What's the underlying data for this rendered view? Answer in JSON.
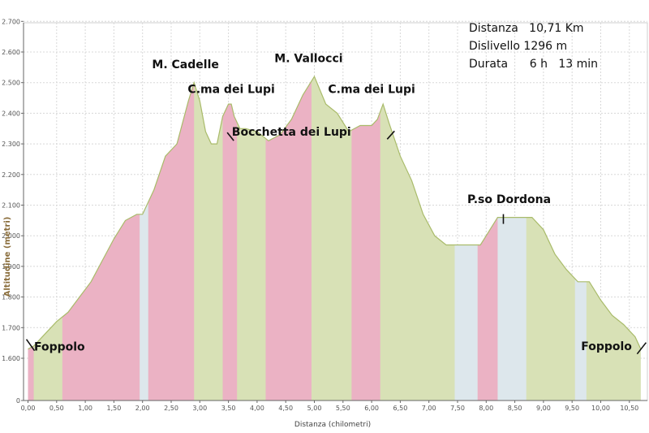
{
  "chart_data": {
    "type": "area",
    "ylabel": "Altitudine (metri)",
    "xlabel": "Distanza (chilometri)",
    "xlim": [
      0,
      10.9
    ],
    "ylim": [
      0,
      2750
    ],
    "x_ticks": [
      "0,00",
      "0,50",
      "1,00",
      "1,50",
      "2,00",
      "2,50",
      "3,00",
      "3,50",
      "4,00",
      "4,50",
      "5,00",
      "5,50",
      "6,00",
      "6,50",
      "7,00",
      "7,50",
      "8,00",
      "8,50",
      "9,00",
      "9,50",
      "10,00",
      "10,50"
    ],
    "y_ticks": [
      "0",
      "1.600",
      "1.700",
      "1.800",
      "1.900",
      "2.000",
      "2.100",
      "2.200",
      "2.300",
      "2.400",
      "2.500",
      "2.600",
      "2.700"
    ],
    "profile": {
      "x": [
        0.0,
        0.1,
        0.3,
        0.5,
        0.7,
        0.9,
        1.1,
        1.3,
        1.5,
        1.7,
        1.9,
        2.0,
        2.2,
        2.4,
        2.6,
        2.8,
        2.9,
        3.0,
        3.1,
        3.2,
        3.3,
        3.4,
        3.5,
        3.55,
        3.6,
        3.7,
        3.8,
        4.0,
        4.2,
        4.4,
        4.6,
        4.8,
        5.0,
        5.2,
        5.4,
        5.6,
        5.8,
        6.0,
        6.1,
        6.2,
        6.3,
        6.5,
        6.7,
        6.9,
        7.1,
        7.3,
        7.5,
        7.7,
        7.9,
        8.0,
        8.2,
        8.4,
        8.6,
        8.8,
        9.0,
        9.2,
        9.4,
        9.6,
        9.8,
        10.0,
        10.2,
        10.4,
        10.6,
        10.7
      ],
      "y": [
        1630,
        1640,
        1680,
        1720,
        1750,
        1800,
        1850,
        1920,
        1990,
        2050,
        2070,
        2070,
        2150,
        2260,
        2300,
        2440,
        2500,
        2440,
        2340,
        2300,
        2300,
        2390,
        2430,
        2430,
        2390,
        2350,
        2350,
        2340,
        2310,
        2330,
        2380,
        2460,
        2520,
        2430,
        2400,
        2340,
        2360,
        2360,
        2380,
        2430,
        2370,
        2260,
        2180,
        2070,
        2000,
        1970,
        1970,
        1970,
        1970,
        2000,
        2060,
        2060,
        2060,
        2060,
        2020,
        1940,
        1890,
        1850,
        1850,
        1790,
        1740,
        1710,
        1670,
        1630
      ]
    },
    "bands": [
      {
        "color": "pink",
        "start": 0.0,
        "end": 0.1
      },
      {
        "color": "green",
        "start": 0.1,
        "end": 0.6
      },
      {
        "color": "pink",
        "start": 0.6,
        "end": 1.95
      },
      {
        "color": "blue",
        "start": 1.95,
        "end": 2.1
      },
      {
        "color": "pink",
        "start": 2.1,
        "end": 2.9
      },
      {
        "color": "green",
        "start": 2.9,
        "end": 3.4
      },
      {
        "color": "pink",
        "start": 3.4,
        "end": 3.65
      },
      {
        "color": "green",
        "start": 3.65,
        "end": 4.15
      },
      {
        "color": "pink",
        "start": 4.15,
        "end": 4.95
      },
      {
        "color": "green",
        "start": 4.95,
        "end": 5.65
      },
      {
        "color": "pink",
        "start": 5.65,
        "end": 6.15
      },
      {
        "color": "green",
        "start": 6.15,
        "end": 7.45
      },
      {
        "color": "blue",
        "start": 7.45,
        "end": 7.85
      },
      {
        "color": "pink",
        "start": 7.85,
        "end": 8.2
      },
      {
        "color": "blue",
        "start": 8.2,
        "end": 8.7
      },
      {
        "color": "green",
        "start": 8.7,
        "end": 9.55
      },
      {
        "color": "blue",
        "start": 9.55,
        "end": 9.75
      },
      {
        "color": "green",
        "start": 9.75,
        "end": 10.7
      }
    ],
    "annotations": [
      {
        "text": "M. Cadelle",
        "x": 2.75,
        "y": 2520
      },
      {
        "text": "C.ma dei Lupi",
        "x": 3.55,
        "y": 2440
      },
      {
        "text": "M. Vallocci",
        "x": 4.9,
        "y": 2540
      },
      {
        "text": "Bocchetta dei Lupi",
        "x": 4.6,
        "y": 2300
      },
      {
        "text": "C.ma dei Lupi",
        "x": 6.0,
        "y": 2440
      },
      {
        "text": "P.so Dordona",
        "x": 8.4,
        "y": 2080
      },
      {
        "text": "Foppolo",
        "x": 0.55,
        "y": 1580
      },
      {
        "text": "Foppolo",
        "x": 10.1,
        "y": 1600
      }
    ],
    "markers": [
      {
        "x": 0.1,
        "y": 1630,
        "dir": "left"
      },
      {
        "x": 3.55,
        "y": 2300,
        "dir": "down"
      },
      {
        "x": 6.3,
        "y": 2310,
        "dir": "up"
      },
      {
        "x": 8.3,
        "y": 2060,
        "dir": "vert"
      },
      {
        "x": 10.65,
        "y": 1630,
        "dir": "right"
      }
    ],
    "grid": true,
    "colors": {
      "pink": "#ebb2c4",
      "green": "#d8e1b6",
      "blue": "#dde7ec",
      "outline": "#a9bb6a",
      "grid": "#d8d8d8",
      "axis": "#666666"
    }
  },
  "info": {
    "distanza": "Distanza   10,71 Km",
    "dislivello": "Dislivello 1296 m",
    "durata": "Durata      6 h   13 min"
  }
}
